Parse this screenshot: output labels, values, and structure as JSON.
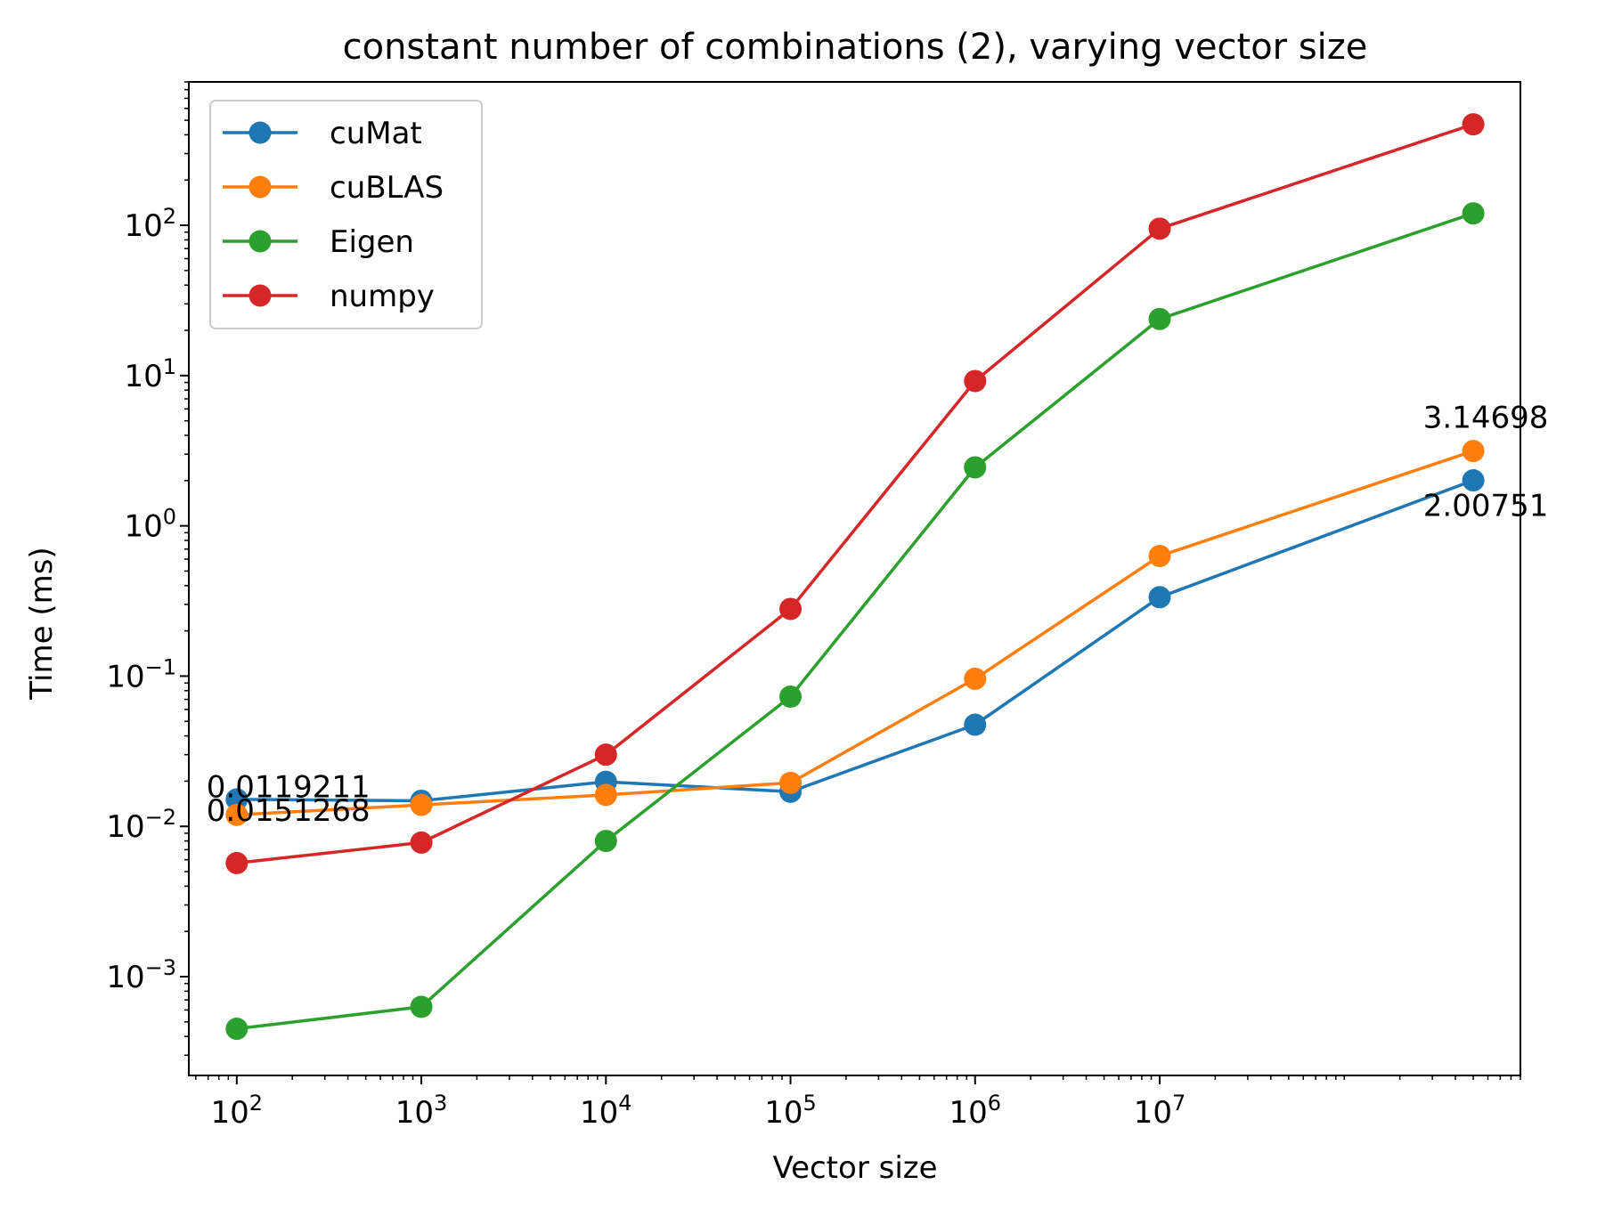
{
  "chart_data": {
    "type": "line",
    "title": "constant number of combinations (2), varying vector size",
    "xlabel": "Vector size",
    "ylabel": "Time (ms)",
    "xscale": "log",
    "yscale": "log",
    "xlim": [
      55,
      900000000
    ],
    "ylim": [
      0.00022,
      900
    ],
    "x": [
      100,
      1000,
      10000,
      100000,
      1000000,
      10000000,
      500000000
    ],
    "x_ticks": [
      {
        "value": 100,
        "base": "10",
        "exp": "2"
      },
      {
        "value": 1000,
        "base": "10",
        "exp": "3"
      },
      {
        "value": 10000,
        "base": "10",
        "exp": "4"
      },
      {
        "value": 100000,
        "base": "10",
        "exp": "5"
      },
      {
        "value": 1000000,
        "base": "10",
        "exp": "6"
      },
      {
        "value": 10000000,
        "base": "10",
        "exp": "7"
      }
    ],
    "y_ticks": [
      {
        "value": 0.001,
        "base": "10",
        "exp": "−3"
      },
      {
        "value": 0.01,
        "base": "10",
        "exp": "−2"
      },
      {
        "value": 0.1,
        "base": "10",
        "exp": "−1"
      },
      {
        "value": 1,
        "base": "10",
        "exp": "0"
      },
      {
        "value": 10,
        "base": "10",
        "exp": "1"
      },
      {
        "value": 100,
        "base": "10",
        "exp": "2"
      }
    ],
    "series": [
      {
        "name": "cuMat",
        "color": "#1f77b4",
        "values": [
          0.0151268,
          0.0148,
          0.0198,
          0.017,
          0.0475,
          0.335,
          2.00751
        ]
      },
      {
        "name": "cuBLAS",
        "color": "#ff7f0e",
        "values": [
          0.0119211,
          0.0139,
          0.0162,
          0.0195,
          0.096,
          0.63,
          3.14698
        ]
      },
      {
        "name": "Eigen",
        "color": "#2ca02c",
        "values": [
          0.00045,
          0.00063,
          0.008,
          0.073,
          2.45,
          23.8,
          120
        ]
      },
      {
        "name": "numpy",
        "color": "#d62728",
        "values": [
          0.0057,
          0.0078,
          0.03,
          0.28,
          9.2,
          95,
          470
        ]
      }
    ],
    "annotations": [
      {
        "text": "0.0119211",
        "x": 100,
        "y": 0.0119211,
        "placement": "above-left"
      },
      {
        "text": "0.0151268",
        "x": 100,
        "y": 0.0151268,
        "placement": "below-left"
      },
      {
        "text": "3.14698",
        "x": 500000000,
        "y": 3.14698,
        "placement": "above"
      },
      {
        "text": "2.00751",
        "x": 500000000,
        "y": 2.00751,
        "placement": "below"
      }
    ],
    "legend_position": "upper-left",
    "grid": false
  }
}
